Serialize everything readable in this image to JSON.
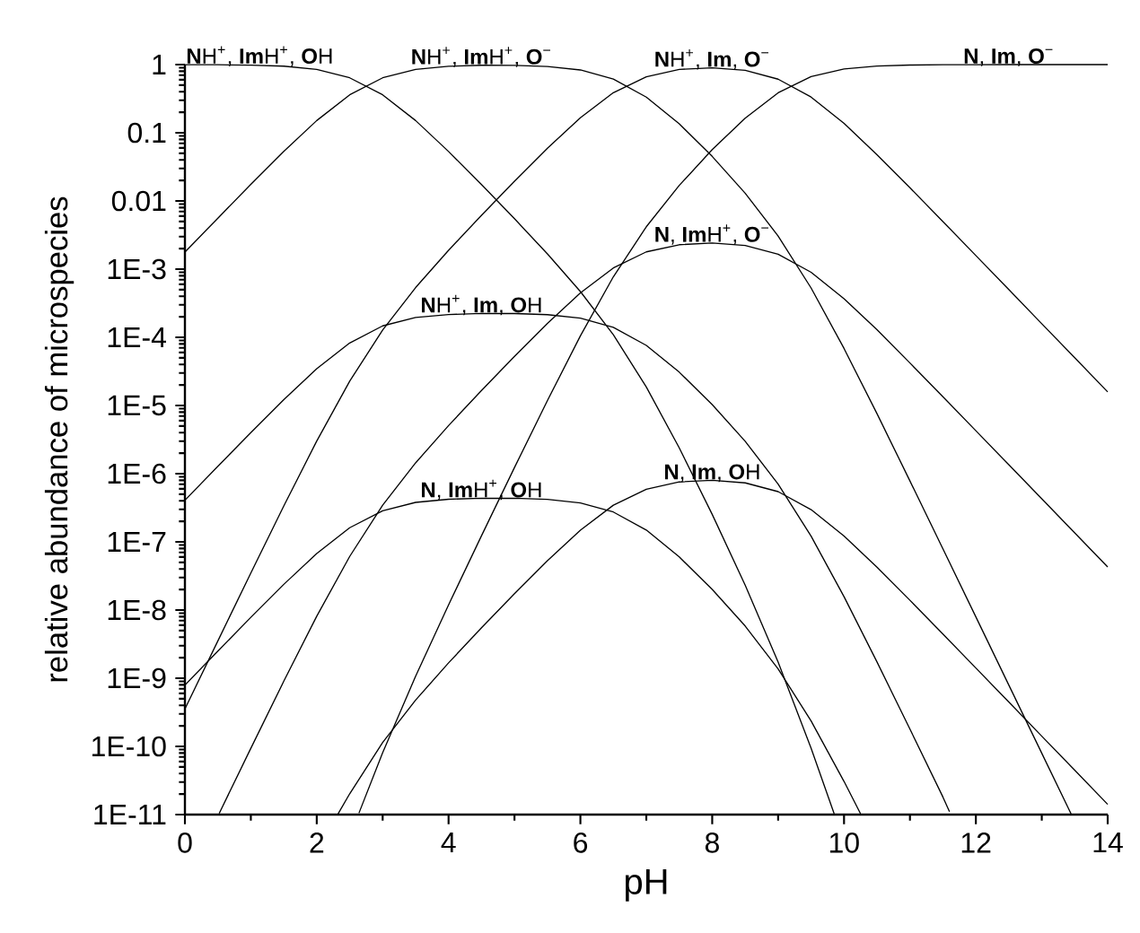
{
  "chart_data": {
    "type": "line",
    "xlabel": "pH",
    "ylabel": "relative abundance of microspecies",
    "log": "y",
    "xlim": [
      0,
      14
    ],
    "xticks": [
      0,
      2,
      4,
      6,
      8,
      10,
      12,
      14
    ],
    "ylim": [
      1e-11,
      1
    ],
    "yticks": [
      {
        "value": 1e-11,
        "label": "1E-11"
      },
      {
        "value": 1e-10,
        "label": "1E-10"
      },
      {
        "value": 1e-09,
        "label": "1E-9"
      },
      {
        "value": 1e-08,
        "label": "1E-8"
      },
      {
        "value": 1e-07,
        "label": "1E-7"
      },
      {
        "value": 1e-06,
        "label": "1E-6"
      },
      {
        "value": 1e-05,
        "label": "1E-5"
      },
      {
        "value": 0.0001,
        "label": "1E-4"
      },
      {
        "value": 0.001,
        "label": "1E-3"
      },
      0.01,
      0.1,
      1
    ],
    "series": [
      {
        "name": "**N**H$^{+}$, **Im**H$^{+}$, **O**H",
        "color": "#000000",
        "x": [
          0,
          0.5,
          1,
          1.5,
          2,
          2.5,
          3,
          3.5,
          4,
          4.5,
          5,
          5.5,
          6,
          6.5,
          7,
          7.5,
          8,
          8.5,
          9,
          9.5,
          9.85
        ],
        "values": [
          0.998,
          0.9945,
          0.982,
          0.947,
          0.849,
          0.64,
          0.36,
          0.151,
          0.0531,
          0.0174,
          0.00548,
          0.00167,
          0.000469,
          0.000109,
          1.87e-05,
          2.39e-06,
          2.53e-07,
          2.32e-08,
          1.72e-09,
          9.4e-11,
          1.03e-11
        ]
      },
      {
        "name": "**N**H$^{+}$, **Im**H$^{+}$, **O**$^{−}$",
        "color": "#000000",
        "x": [
          0,
          0.5,
          1,
          1.5,
          2,
          2.5,
          3,
          3.5,
          4,
          4.5,
          5,
          5.5,
          6,
          6.5,
          7,
          7.5,
          8,
          8.5,
          9,
          9.5,
          10,
          10.5,
          11,
          11.5,
          12,
          12.5,
          13,
          13.45
        ],
        "values": [
          0.00178,
          0.00559,
          0.0175,
          0.0532,
          0.151,
          0.36,
          0.64,
          0.849,
          0.945,
          0.976,
          0.975,
          0.939,
          0.834,
          0.613,
          0.333,
          0.135,
          0.045,
          0.013,
          0.00306,
          0.000529,
          6.86e-05,
          7.57e-06,
          7.82e-07,
          7.91e-08,
          7.93e-09,
          7.94e-10,
          7.94e-11,
          1e-11
        ]
      },
      {
        "name": "**N**H$^{+}$, **Im**, **O**$^{−}$",
        "color": "#000000",
        "x": [
          0,
          0.5,
          1,
          1.5,
          2,
          2.5,
          3,
          3.5,
          4,
          4.5,
          5,
          5.5,
          6,
          6.5,
          7,
          7.5,
          8,
          8.5,
          9,
          9.5,
          10,
          10.5,
          11,
          11.5,
          12,
          12.5,
          13,
          13.5,
          14
        ],
        "values": [
          3.54e-10,
          3.53e-09,
          3.49e-08,
          3.36e-07,
          3.01e-06,
          2.27e-05,
          0.000128,
          0.000536,
          0.00189,
          0.00616,
          0.0195,
          0.0593,
          0.166,
          0.387,
          0.663,
          0.849,
          0.898,
          0.823,
          0.611,
          0.334,
          0.137,
          0.0477,
          0.0156,
          0.00499,
          0.00158,
          0.000501,
          0.000158,
          5.01e-05,
          1.58e-05
        ]
      },
      {
        "name": "**N**, **Im**, **O**$^{−}$",
        "color": "#000000",
        "x": [
          2.64,
          3,
          3.5,
          4,
          4.5,
          5,
          5.5,
          6,
          6.5,
          7,
          7.5,
          8,
          8.5,
          9,
          9.5,
          10,
          10.5,
          11,
          11.5,
          12,
          12.5,
          13,
          13.5,
          14
        ],
        "values": [
          1.05e-11,
          8.06e-11,
          1.07e-09,
          1.19e-08,
          1.23e-07,
          1.23e-06,
          1.18e-05,
          0.000105,
          0.000772,
          0.00418,
          0.0169,
          0.0567,
          0.164,
          0.386,
          0.666,
          0.863,
          0.952,
          0.984,
          0.995,
          0.998,
          1,
          1,
          1,
          1
        ]
      },
      {
        "name": "**N**H$^{+}$, **Im**, **O**H",
        "color": "#000000",
        "x": [
          0,
          0.5,
          1,
          1.5,
          2,
          2.5,
          3,
          3.5,
          4,
          4.5,
          5,
          5.5,
          6,
          6.5,
          7,
          7.5,
          8,
          8.5,
          9,
          9.5,
          10,
          10.5,
          11,
          11.5,
          11.6
        ],
        "values": [
          4.07e-07,
          1.28e-06,
          4e-06,
          1.22e-05,
          3.46e-05,
          8.25e-05,
          0.000147,
          0.000195,
          0.000216,
          0.000224,
          0.000223,
          0.000215,
          0.000191,
          0.00014,
          7.62e-05,
          3.08e-05,
          1.03e-05,
          2.99e-06,
          7.02e-07,
          1.21e-07,
          1.57e-08,
          1.73e-09,
          1.79e-10,
          1.81e-11,
          1.1e-11
        ]
      },
      {
        "name": "**N**, **Im**H$^{+}$, **O**$^{−}$",
        "color": "#000000",
        "x": [
          0.52,
          1,
          1.5,
          2,
          2.5,
          3,
          3.5,
          4,
          4.5,
          5,
          5.5,
          6,
          6.5,
          7,
          7.5,
          8,
          8.5,
          9,
          9.5,
          10,
          10.5,
          11,
          11.5,
          12,
          12.5,
          13,
          13.5,
          14
        ],
        "values": [
          1.04e-11,
          9.38e-11,
          9.04e-10,
          8.11e-09,
          6.11e-08,
          3.44e-07,
          1.44e-06,
          5.07e-06,
          1.66e-05,
          5.24e-05,
          0.00016,
          0.000448,
          0.00104,
          0.00179,
          0.00228,
          0.00242,
          0.00222,
          0.00165,
          0.000898,
          0.000368,
          0.000129,
          4.2e-05,
          1.34e-05,
          4.26e-06,
          1.35e-06,
          4.27e-07,
          1.35e-07,
          4.27e-08
        ]
      },
      {
        "name": "**N**, **Im**H$^{+}$, **O**H",
        "color": "#000000",
        "x": [
          0,
          0.5,
          1,
          1.5,
          2,
          2.5,
          3,
          3.5,
          4,
          4.5,
          5,
          5.5,
          6,
          6.5,
          7,
          7.5,
          8,
          8.5,
          9,
          9.5,
          10,
          10.25
        ],
        "values": [
          7.93e-10,
          2.5e-09,
          7.81e-09,
          2.38e-08,
          6.74e-08,
          1.61e-07,
          2.86e-07,
          3.79e-07,
          4.22e-07,
          4.36e-07,
          4.35e-07,
          4.2e-07,
          3.72e-07,
          2.74e-07,
          1.49e-07,
          6.01e-08,
          2.01e-08,
          5.83e-09,
          1.37e-09,
          2.36e-10,
          3.06e-11,
          1.03e-11
        ]
      },
      {
        "name": "**N**, **Im**, **O**H",
        "color": "#000000",
        "x": [
          2.32,
          2.5,
          3,
          3.5,
          4,
          4.5,
          5,
          5.5,
          6,
          6.5,
          7,
          7.5,
          8,
          8.5,
          9,
          9.5,
          10,
          10.5,
          11,
          11.5,
          12,
          12.5,
          13,
          13.5,
          14
        ],
        "values": [
          1.01e-11,
          2.02e-11,
          1.14e-10,
          4.77e-10,
          1.68e-09,
          5.49e-09,
          1.74e-08,
          5.28e-08,
          1.48e-07,
          3.45e-07,
          5.91e-07,
          7.56e-07,
          8e-07,
          7.33e-07,
          5.45e-07,
          2.97e-07,
          1.22e-07,
          4.25e-08,
          1.39e-08,
          4.45e-09,
          1.41e-09,
          4.47e-10,
          1.41e-10,
          4.47e-11,
          1.41e-11
        ]
      }
    ]
  }
}
